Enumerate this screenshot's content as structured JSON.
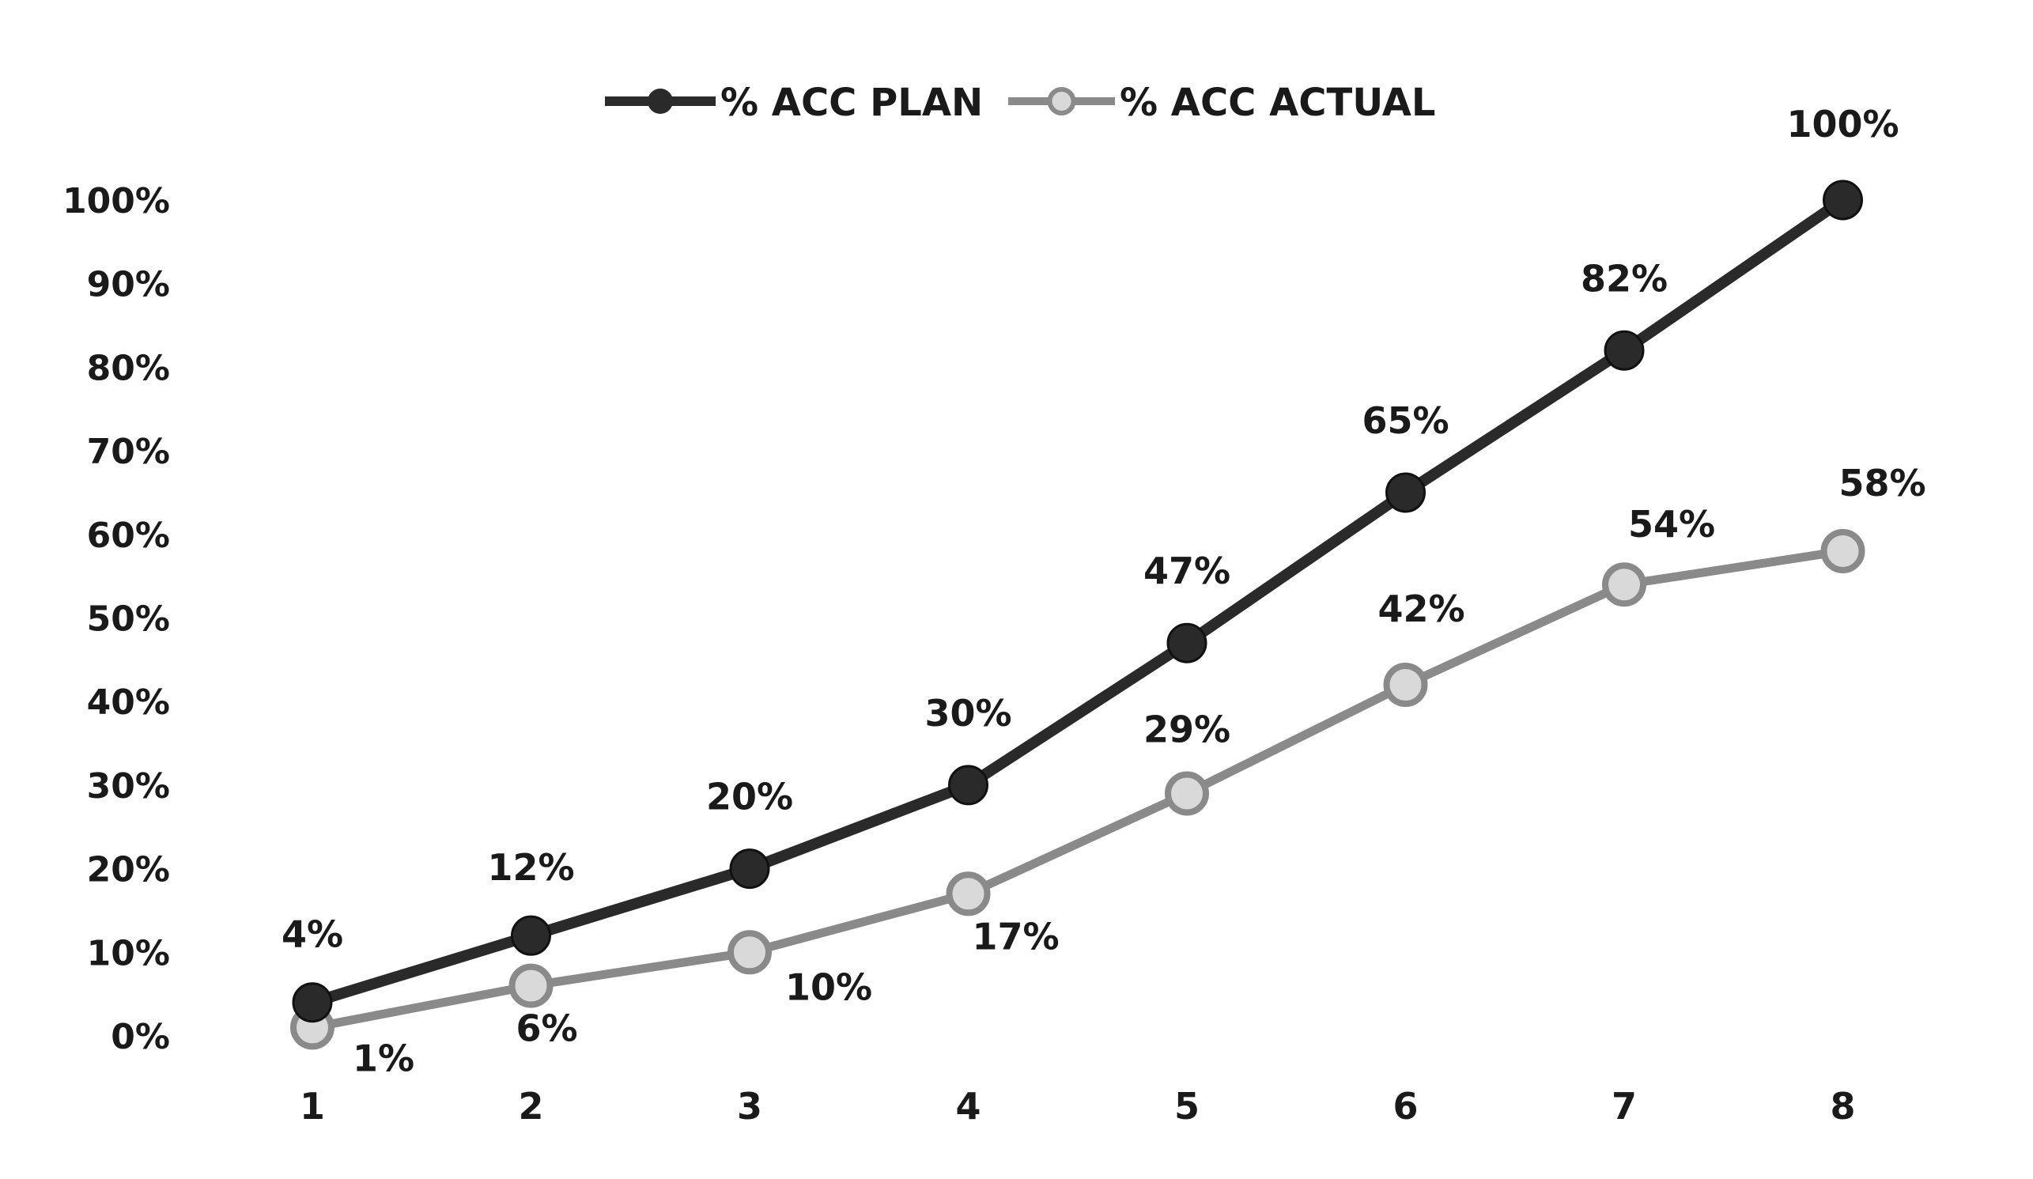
{
  "chart_data": {
    "type": "line",
    "title": "",
    "xlabel": "",
    "ylabel": "",
    "categories": [
      "1",
      "2",
      "3",
      "4",
      "5",
      "6",
      "7",
      "8"
    ],
    "x": [
      1,
      2,
      3,
      4,
      5,
      6,
      7,
      8
    ],
    "ylim": [
      0,
      1
    ],
    "yticks": [
      "0%",
      "10%",
      "20%",
      "30%",
      "40%",
      "50%",
      "60%",
      "70%",
      "80%",
      "90%",
      "100%"
    ],
    "grid": false,
    "legend_position": "top-center",
    "series": [
      {
        "name": "% ACC PLAN",
        "values": [
          0.04,
          0.12,
          0.2,
          0.3,
          0.47,
          0.65,
          0.82,
          1.0
        ],
        "labels": [
          "4%",
          "12%",
          "20%",
          "30%",
          "47%",
          "65%",
          "82%",
          "100%"
        ],
        "color": "#2a2a2a",
        "marker": "filled-circle"
      },
      {
        "name": "% ACC ACTUAL",
        "values": [
          0.01,
          0.06,
          0.1,
          0.17,
          0.29,
          0.42,
          0.54,
          0.58
        ],
        "labels": [
          "1%",
          "6%",
          "10%",
          "17%",
          "29%",
          "42%",
          "54%",
          "58%"
        ],
        "color": "#8a8a8a",
        "marker": "hollow-circle"
      }
    ]
  }
}
